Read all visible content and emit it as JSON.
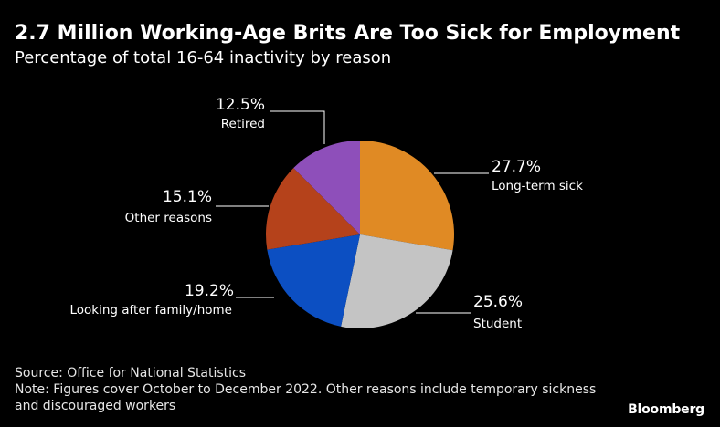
{
  "header": {
    "title": "2.7 Million Working-Age Brits Are Too Sick for Employment",
    "subtitle": "Percentage of total 16-64 inactivity by reason"
  },
  "chart_data": {
    "type": "pie",
    "start_angle_deg": 0,
    "direction": "clockwise",
    "slices": [
      {
        "label": "Long-term sick",
        "value": 27.7,
        "value_label": "27.7%",
        "color": "#e08a24"
      },
      {
        "label": "Student",
        "value": 25.6,
        "value_label": "25.6%",
        "color": "#c4c4c4"
      },
      {
        "label": "Looking after family/home",
        "value": 19.2,
        "value_label": "19.2%",
        "color": "#0c4fc2"
      },
      {
        "label": "Other reasons",
        "value": 15.1,
        "value_label": "15.1%",
        "color": "#b5421b"
      },
      {
        "label": "Retired",
        "value": 12.5,
        "value_label": "12.5%",
        "color": "#8e4fba"
      }
    ]
  },
  "footer": {
    "source": "Source: Office for National Statistics",
    "note": "Note: Figures cover October to December 2022. Other reasons include temporary sickness and discouraged workers"
  },
  "brand": {
    "logo": "Bloomberg"
  }
}
